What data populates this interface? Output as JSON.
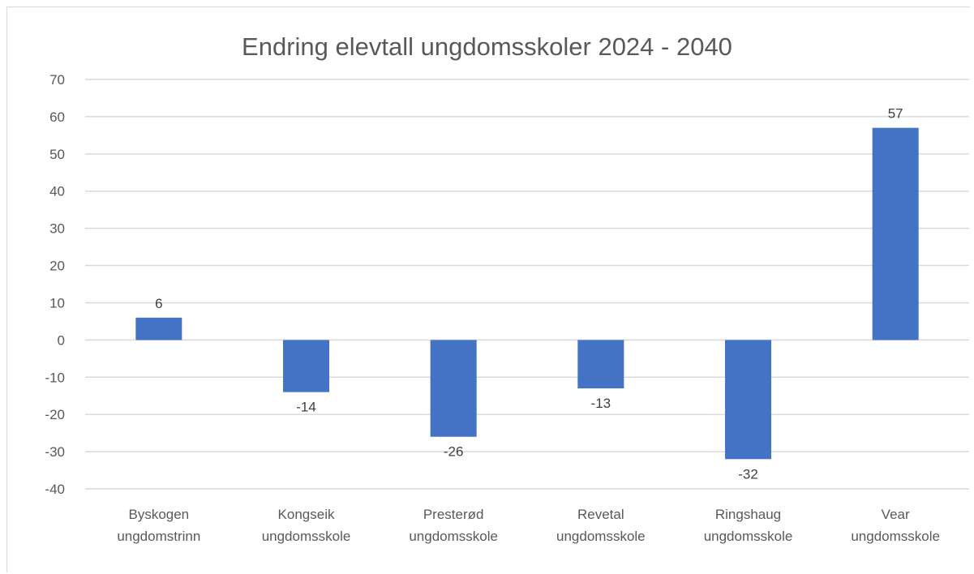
{
  "chart_data": {
    "type": "bar",
    "title": "Endring elevtall ungdomsskoler 2024 - 2040",
    "xlabel": "",
    "ylabel": "",
    "categories": [
      [
        "Byskogen",
        "ungdomstrinn"
      ],
      [
        "Kongseik",
        "ungdomsskole"
      ],
      [
        "Presterød",
        "ungdomsskole"
      ],
      [
        "Revetal",
        "ungdomsskole"
      ],
      [
        "Ringshaug",
        "ungdomsskole"
      ],
      [
        "Vear",
        "ungdomsskole"
      ]
    ],
    "values": [
      6,
      -14,
      -26,
      -13,
      -32,
      57
    ],
    "data_labels": [
      "6",
      "-14",
      "-26",
      "-13",
      "-32",
      "57"
    ],
    "ylim": [
      -40,
      70
    ],
    "yticks": [
      70,
      60,
      50,
      40,
      30,
      20,
      10,
      0,
      -10,
      -20,
      -30,
      -40
    ],
    "grid": true,
    "legend": "none",
    "bar_color": "#4472c4",
    "grid_color": "#d9d9d9"
  }
}
